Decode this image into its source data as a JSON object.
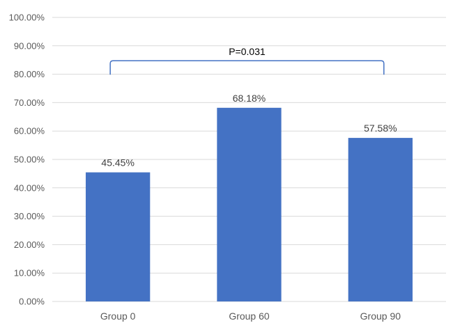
{
  "chart_data": {
    "type": "bar",
    "categories": [
      "Group 0",
      "Group 60",
      "Group 90"
    ],
    "values": [
      45.45,
      68.18,
      57.58
    ],
    "data_labels": [
      "45.45%",
      "68.18%",
      "57.58%"
    ],
    "ylim": [
      0,
      100
    ],
    "y_ticks": [
      0,
      10,
      20,
      30,
      40,
      50,
      60,
      70,
      80,
      90,
      100
    ],
    "y_tick_labels": [
      "0.00%",
      "10.00%",
      "20.00%",
      "30.00%",
      "40.00%",
      "50.00%",
      "60.00%",
      "70.00%",
      "80.00%",
      "90.00%",
      "100.00%"
    ],
    "grid": true,
    "legend": "none",
    "bar_color": "#4472c4",
    "annotation": {
      "text": "P=0.031",
      "from_category": "Group 0",
      "to_category": "Group 90",
      "y": 85,
      "color": "#4472c4"
    }
  }
}
